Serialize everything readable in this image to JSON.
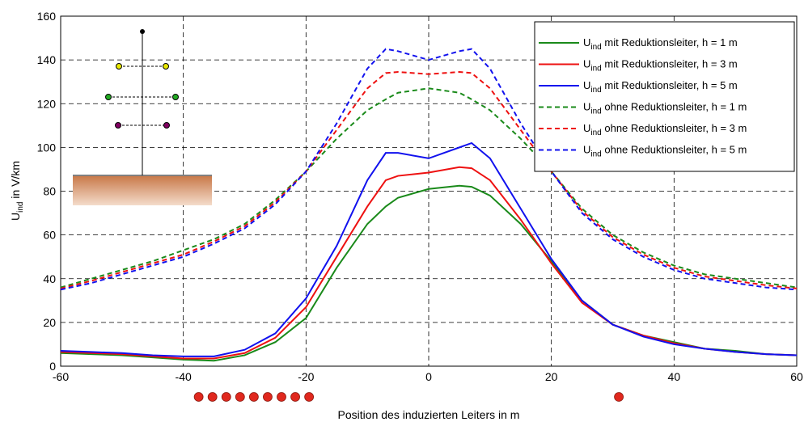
{
  "chart_data": {
    "type": "line",
    "symbol": "U",
    "symbol_sub": "ind",
    "ylabel_rest": " in V/km",
    "xlabel": "Position des induzierten Leiters in m",
    "x": [
      -60,
      -55,
      -50,
      -45,
      -40,
      -35,
      -30,
      -25,
      -20,
      -15,
      -10,
      -7,
      -5,
      0,
      5,
      7,
      10,
      15,
      20,
      25,
      30,
      35,
      40,
      45,
      50,
      55,
      60
    ],
    "series": [
      {
        "name": " mit Reduktionsleiter, h =  1 m",
        "color": "#1a8a1a",
        "dash": false,
        "values": [
          6,
          5.5,
          5,
          4,
          3,
          2.5,
          5,
          11,
          22,
          45,
          65,
          73,
          77,
          81,
          82.5,
          82,
          78,
          65,
          48,
          30,
          19,
          14,
          11,
          8,
          7,
          5.5,
          5
        ]
      },
      {
        "name": " mit Reduktionsleiter, h =  3 m",
        "color": "#ee1111",
        "dash": false,
        "values": [
          6.5,
          6,
          5.5,
          4.5,
          3.5,
          3.5,
          6,
          13,
          27,
          50,
          73,
          85,
          87,
          88.5,
          91,
          90.5,
          85,
          67,
          47,
          29,
          19,
          14,
          10.5,
          8,
          6.5,
          5.5,
          5
        ]
      },
      {
        "name": " mit Reduktionsleiter, h =  5 m",
        "color": "#1111ee",
        "dash": false,
        "values": [
          7,
          6.5,
          6,
          5,
          4.5,
          4.5,
          7.5,
          15,
          31,
          55,
          85,
          97.5,
          97.5,
          95,
          100,
          102,
          95,
          72,
          49,
          30,
          19,
          13.5,
          10,
          8,
          6.5,
          5.5,
          5
        ]
      },
      {
        "name": " ohne Reduktionsleiter, h = 1 m",
        "color": "#1a8a1a",
        "dash": true,
        "values": [
          36,
          40,
          44,
          48,
          53,
          58,
          65,
          76,
          89,
          104,
          117,
          122,
          125,
          127,
          125,
          122,
          117,
          104,
          89,
          72,
          60,
          52,
          46,
          42,
          40,
          38,
          36
        ]
      },
      {
        "name": " ohne Reduktionsleiter, h = 3 m",
        "color": "#ee1111",
        "dash": true,
        "values": [
          35.5,
          39,
          43,
          47,
          51,
          57,
          64,
          75,
          89,
          108,
          127,
          134,
          134.5,
          133.5,
          134.5,
          134,
          127,
          108,
          89,
          71,
          59,
          51,
          45,
          41,
          39,
          37,
          35.5
        ]
      },
      {
        "name": " ohne Reduktionsleiter, h = 5 m",
        "color": "#1111ee",
        "dash": true,
        "values": [
          35,
          38,
          42,
          46,
          50,
          56,
          63,
          74,
          89,
          111,
          136,
          145,
          144,
          140,
          144,
          145,
          136,
          111,
          89,
          70,
          58,
          50,
          44,
          40,
          38,
          36,
          35
        ]
      }
    ],
    "markers": {
      "x": [
        -37.5,
        -35.25,
        -33,
        -30.75,
        -28.5,
        -26.25,
        -24,
        -21.75,
        -19.5,
        31
      ],
      "color": "#e0281e"
    },
    "xlim": [
      -60,
      60
    ],
    "xticks": [
      -60,
      -40,
      -20,
      0,
      20,
      40,
      60
    ],
    "ylim": [
      0,
      160
    ],
    "yticks": [
      0,
      20,
      40,
      60,
      80,
      100,
      120,
      140,
      160
    ],
    "grid": true,
    "legend": "upper right"
  }
}
